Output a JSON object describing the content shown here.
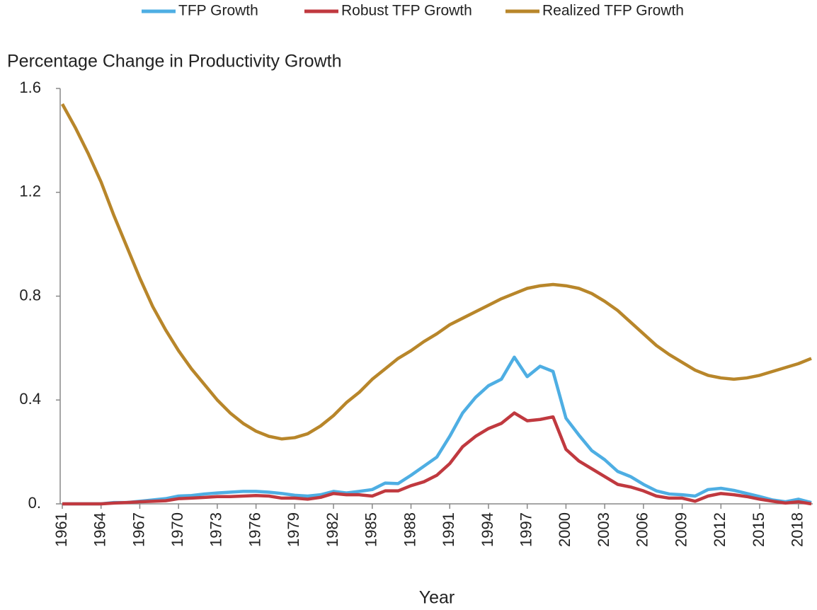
{
  "chart_data": {
    "type": "line",
    "y_label": "Percentage Change in Productivity Growth",
    "x_label": "Year",
    "x": [
      1961,
      1962,
      1963,
      1964,
      1965,
      1966,
      1967,
      1968,
      1969,
      1970,
      1971,
      1972,
      1973,
      1974,
      1975,
      1976,
      1977,
      1978,
      1979,
      1980,
      1981,
      1982,
      1983,
      1984,
      1985,
      1986,
      1987,
      1988,
      1989,
      1990,
      1991,
      1992,
      1993,
      1994,
      1995,
      1996,
      1997,
      1998,
      1999,
      2000,
      2001,
      2002,
      2003,
      2004,
      2005,
      2006,
      2007,
      2008,
      2009,
      2010,
      2011,
      2012,
      2013,
      2014,
      2015,
      2016,
      2017,
      2018,
      2019
    ],
    "series": [
      {
        "name": "TFP Growth",
        "color": "#4eaee3",
        "values": [
          0,
          0,
          0,
          0,
          0.005,
          0.005,
          0.01,
          0.015,
          0.02,
          0.03,
          0.032,
          0.038,
          0.042,
          0.045,
          0.048,
          0.048,
          0.045,
          0.04,
          0.033,
          0.03,
          0.035,
          0.048,
          0.042,
          0.048,
          0.055,
          0.08,
          0.078,
          0.11,
          0.145,
          0.18,
          0.26,
          0.35,
          0.41,
          0.455,
          0.48,
          0.565,
          0.49,
          0.53,
          0.51,
          0.33,
          0.265,
          0.205,
          0.17,
          0.125,
          0.105,
          0.075,
          0.05,
          0.038,
          0.035,
          0.03,
          0.055,
          0.06,
          0.052,
          0.04,
          0.028,
          0.015,
          0.008,
          0.018,
          0.005
        ]
      },
      {
        "name": "Robust TFP Growth",
        "color": "#c0393f",
        "values": [
          0,
          0,
          0,
          0,
          0.003,
          0.005,
          0.008,
          0.01,
          0.012,
          0.02,
          0.022,
          0.025,
          0.028,
          0.028,
          0.03,
          0.032,
          0.03,
          0.022,
          0.022,
          0.018,
          0.025,
          0.04,
          0.035,
          0.035,
          0.03,
          0.05,
          0.05,
          0.07,
          0.085,
          0.11,
          0.155,
          0.22,
          0.26,
          0.29,
          0.31,
          0.35,
          0.32,
          0.325,
          0.335,
          0.21,
          0.165,
          0.135,
          0.105,
          0.075,
          0.065,
          0.05,
          0.03,
          0.022,
          0.022,
          0.01,
          0.03,
          0.04,
          0.035,
          0.028,
          0.018,
          0.01,
          0.003,
          0.008,
          0
        ]
      },
      {
        "name": "Realized TFP Growth",
        "color": "#b8862a",
        "values": [
          1.54,
          1.45,
          1.35,
          1.24,
          1.11,
          0.99,
          0.87,
          0.76,
          0.67,
          0.59,
          0.52,
          0.46,
          0.4,
          0.35,
          0.31,
          0.28,
          0.26,
          0.25,
          0.255,
          0.27,
          0.3,
          0.34,
          0.39,
          0.43,
          0.48,
          0.52,
          0.56,
          0.59,
          0.625,
          0.655,
          0.69,
          0.715,
          0.74,
          0.765,
          0.79,
          0.81,
          0.83,
          0.84,
          0.845,
          0.84,
          0.83,
          0.81,
          0.78,
          0.745,
          0.7,
          0.655,
          0.61,
          0.575,
          0.545,
          0.515,
          0.495,
          0.485,
          0.48,
          0.485,
          0.495,
          0.51,
          0.525,
          0.54,
          0.56
        ]
      }
    ],
    "xlim": [
      1961,
      2019
    ],
    "xticks": [
      1961,
      1964,
      1967,
      1970,
      1973,
      1976,
      1979,
      1982,
      1985,
      1988,
      1991,
      1994,
      1997,
      2000,
      2003,
      2006,
      2009,
      2012,
      2015,
      2018
    ],
    "ylim": [
      0,
      1.6
    ],
    "yticks": [
      {
        "value": 0,
        "label": "0."
      },
      0.4,
      0.8,
      1.2,
      1.6
    ],
    "grid": false,
    "legend": "top"
  }
}
